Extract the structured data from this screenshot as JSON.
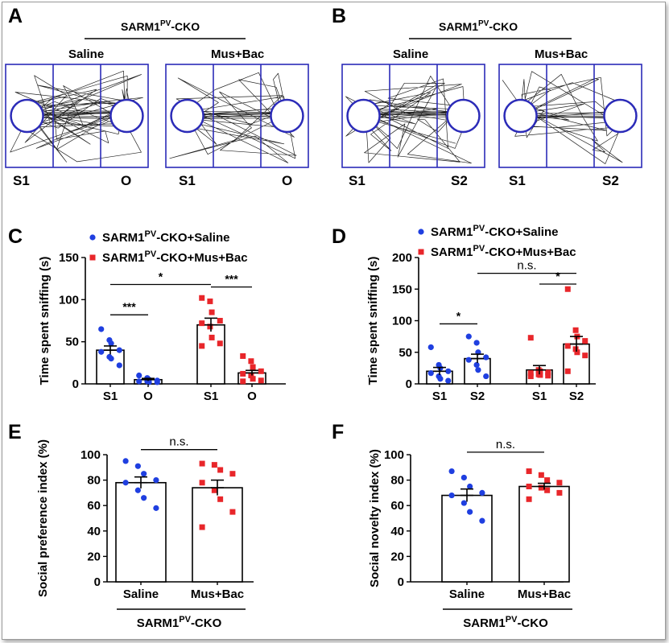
{
  "colors": {
    "saline": "#1f3fe0",
    "musbac": "#e8262a",
    "arena": "#2b2bb8",
    "axis": "#000000"
  },
  "panels": {
    "A": {
      "letter": "A",
      "header": {
        "main": "SARM1",
        "sup": "PV",
        "suffix": "-CKO"
      },
      "groups": [
        {
          "label": "Saline",
          "left": "S1",
          "right": "O"
        },
        {
          "label": "Mus+Bac",
          "left": "S1",
          "right": "O"
        }
      ]
    },
    "B": {
      "letter": "B",
      "header": {
        "main": "SARM1",
        "sup": "PV",
        "suffix": "-CKO"
      },
      "groups": [
        {
          "label": "Saline",
          "left": "S1",
          "right": "S2"
        },
        {
          "label": "Mus+Bac",
          "left": "S1",
          "right": "S2"
        }
      ]
    }
  },
  "chart_data": [
    {
      "panel": "C",
      "type": "bar",
      "ylabel": "Time spent sniffing (s)",
      "ylim": [
        0,
        150
      ],
      "yticks": [
        0,
        50,
        100,
        150
      ],
      "categories": [
        "S1",
        "O",
        "S1",
        "O"
      ],
      "legend": [
        {
          "main": "SARM1",
          "sup": "PV",
          "suffix": "-CKO+Saline",
          "color": "#1f3fe0",
          "marker": "circle"
        },
        {
          "main": "SARM1",
          "sup": "PV",
          "suffix": "-CKO+Mus+Bac",
          "color": "#e8262a",
          "marker": "square"
        }
      ],
      "bars": [
        {
          "label": "S1",
          "group": "Saline",
          "mean": 40,
          "sem": 5,
          "color": "#1f3fe0",
          "marker": "circle",
          "points": [
            65,
            52,
            48,
            40,
            38,
            32,
            30,
            22
          ]
        },
        {
          "label": "O",
          "group": "Saline",
          "mean": 5,
          "sem": 1.5,
          "color": "#1f3fe0",
          "marker": "circle",
          "points": [
            10,
            7,
            5,
            4,
            3,
            3,
            2,
            2
          ]
        },
        {
          "label": "S1",
          "group": "Mus+Bac",
          "mean": 70,
          "sem": 8,
          "color": "#e8262a",
          "marker": "square",
          "points": [
            102,
            98,
            85,
            75,
            72,
            68,
            55,
            48,
            45
          ]
        },
        {
          "label": "O",
          "group": "Mus+Bac",
          "mean": 13,
          "sem": 3,
          "color": "#e8262a",
          "marker": "square",
          "points": [
            33,
            27,
            20,
            15,
            12,
            10,
            6,
            4,
            3
          ]
        }
      ],
      "significance": [
        {
          "from": 0,
          "to": 2,
          "y": 118,
          "label": "*"
        },
        {
          "from": 0,
          "to": 1,
          "y": 82,
          "label": "***"
        },
        {
          "from": 2,
          "to": 3,
          "y": 115,
          "label": "***"
        }
      ]
    },
    {
      "panel": "D",
      "type": "bar",
      "ylabel": "Time spent sniffing (s)",
      "ylim": [
        0,
        200
      ],
      "yticks": [
        0,
        50,
        100,
        150,
        200
      ],
      "categories": [
        "S1",
        "S2",
        "S1",
        "S2"
      ],
      "legend": [
        {
          "main": "SARM1",
          "sup": "PV",
          "suffix": "-CKO+Saline",
          "color": "#1f3fe0",
          "marker": "circle"
        },
        {
          "main": "SARM1",
          "sup": "PV",
          "suffix": "-CKO+Mus+Bac",
          "color": "#e8262a",
          "marker": "square"
        }
      ],
      "bars": [
        {
          "label": "S1",
          "group": "Saline",
          "mean": 20,
          "sem": 6,
          "color": "#1f3fe0",
          "marker": "circle",
          "points": [
            58,
            30,
            25,
            20,
            17,
            12,
            8,
            5
          ]
        },
        {
          "label": "S2",
          "group": "Saline",
          "mean": 40,
          "sem": 7,
          "color": "#1f3fe0",
          "marker": "circle",
          "points": [
            75,
            65,
            50,
            42,
            38,
            30,
            22,
            12
          ]
        },
        {
          "label": "S1",
          "group": "Mus+Bac",
          "mean": 22,
          "sem": 7,
          "color": "#e8262a",
          "marker": "square",
          "points": [
            73,
            22,
            20,
            18,
            17,
            15,
            14,
            13,
            12
          ]
        },
        {
          "label": "S2",
          "group": "Mus+Bac",
          "mean": 63,
          "sem": 12,
          "color": "#e8262a",
          "marker": "square",
          "points": [
            150,
            85,
            75,
            68,
            60,
            55,
            50,
            45,
            20
          ]
        }
      ],
      "significance": [
        {
          "from": 0,
          "to": 1,
          "y": 95,
          "label": "*"
        },
        {
          "from": 1,
          "to": 3,
          "y": 175,
          "label": "n.s."
        },
        {
          "from": 2,
          "to": 3,
          "y": 158,
          "label": "*"
        }
      ]
    },
    {
      "panel": "E",
      "type": "bar",
      "ylabel": "Social preference index (%)",
      "ylim": [
        0,
        100
      ],
      "yticks": [
        0,
        20,
        40,
        60,
        80,
        100
      ],
      "categories": [
        "Saline",
        "Mus+Bac"
      ],
      "group_label": {
        "main": "SARM1",
        "sup": "PV",
        "suffix": "-CKO"
      },
      "bars": [
        {
          "label": "Saline",
          "mean": 78,
          "sem": 4.5,
          "color": "#1f3fe0",
          "marker": "circle",
          "points": [
            95,
            91,
            85,
            80,
            78,
            72,
            66,
            58
          ]
        },
        {
          "label": "Mus+Bac",
          "mean": 74,
          "sem": 6,
          "color": "#e8262a",
          "marker": "square",
          "points": [
            93,
            92,
            88,
            85,
            78,
            72,
            65,
            55,
            43
          ]
        }
      ],
      "significance": [
        {
          "from": 0,
          "to": 1,
          "y": 104,
          "label": "n.s."
        }
      ]
    },
    {
      "panel": "F",
      "type": "bar",
      "ylabel": "Social novelty index (%)",
      "ylim": [
        0,
        100
      ],
      "yticks": [
        0,
        20,
        40,
        60,
        80,
        100
      ],
      "categories": [
        "Saline",
        "Mus+Bac"
      ],
      "group_label": {
        "main": "SARM1",
        "sup": "PV",
        "suffix": "-CKO"
      },
      "bars": [
        {
          "label": "Saline",
          "mean": 68,
          "sem": 5,
          "color": "#1f3fe0",
          "marker": "circle",
          "points": [
            87,
            82,
            75,
            70,
            68,
            62,
            55,
            48
          ]
        },
        {
          "label": "Mus+Bac",
          "mean": 75,
          "sem": 2.5,
          "color": "#e8262a",
          "marker": "square",
          "points": [
            87,
            84,
            80,
            78,
            75,
            74,
            72,
            70,
            65
          ]
        }
      ],
      "significance": [
        {
          "from": 0,
          "to": 1,
          "y": 102,
          "label": "n.s."
        }
      ]
    }
  ]
}
